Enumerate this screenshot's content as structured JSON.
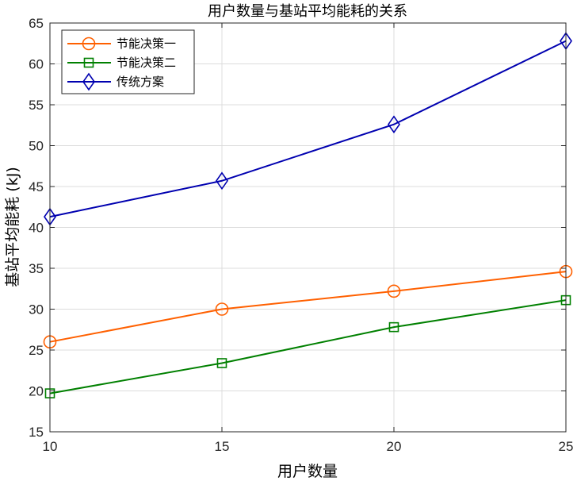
{
  "chart_data": {
    "type": "line",
    "title": "用户数量与基站平均能耗的关系",
    "xlabel": "用户数量",
    "ylabel": "基站平均能耗 (kJ)",
    "x": [
      10,
      15,
      20,
      25
    ],
    "xlim": [
      10,
      25
    ],
    "ylim": [
      15,
      65
    ],
    "xticks": [
      "10",
      "15",
      "20",
      "25"
    ],
    "yticks": [
      "15",
      "20",
      "25",
      "30",
      "35",
      "40",
      "45",
      "50",
      "55",
      "60",
      "65"
    ],
    "grid": true,
    "legend_position": "top-left",
    "series": [
      {
        "name": "节能决策一",
        "values": [
          26.0,
          30.0,
          32.2,
          34.6
        ],
        "color": "#ff6000",
        "marker": "circle"
      },
      {
        "name": "节能决策二",
        "values": [
          19.7,
          23.4,
          27.8,
          31.1
        ],
        "color": "#008000",
        "marker": "square"
      },
      {
        "name": "传统方案",
        "values": [
          41.3,
          45.7,
          52.6,
          62.8
        ],
        "color": "#0000b0",
        "marker": "diamond"
      }
    ]
  }
}
